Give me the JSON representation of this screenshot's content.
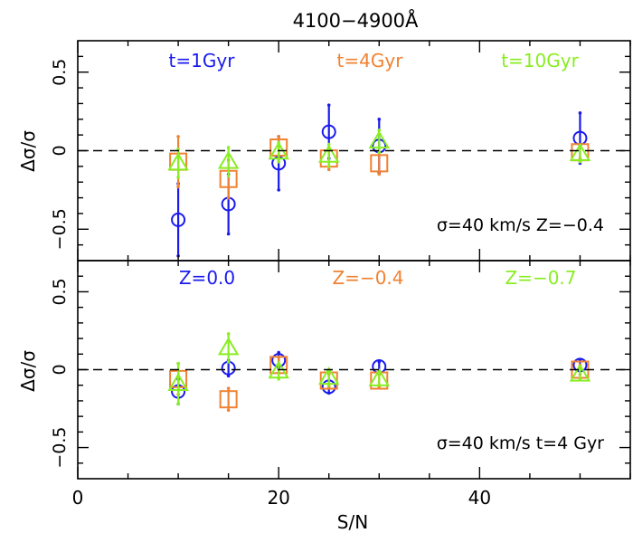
{
  "title": "4100−4900Å",
  "colors": {
    "blue": "#1a1aee",
    "orange": "#f08232",
    "green": "#88ee22",
    "axis": "#000000"
  },
  "chart_data": [
    {
      "type": "scatter",
      "panel": "top",
      "title": "4100−4900Å",
      "xlabel": "",
      "ylabel": "Δσ/σ",
      "xlim": [
        0,
        55
      ],
      "ylim": [
        -0.7,
        0.7
      ],
      "yticks": [
        -0.5,
        0,
        0.5
      ],
      "ytick_labels": [
        "−0.5",
        "0",
        "0.5"
      ],
      "reference_line": 0,
      "annotation": "σ=40 km/s Z=−0.4",
      "series": [
        {
          "name": "t=1Gyr",
          "color": "#1a1aee",
          "marker": "circle",
          "x": [
            10,
            15,
            20,
            25,
            30,
            50
          ],
          "y": [
            -0.44,
            -0.34,
            -0.08,
            0.12,
            0.03,
            0.08
          ],
          "err": [
            0.23,
            0.19,
            0.17,
            0.17,
            0.17,
            0.16
          ]
        },
        {
          "name": "t=4Gyr",
          "color": "#f08232",
          "marker": "square",
          "x": [
            10,
            15,
            20,
            25,
            30,
            50
          ],
          "y": [
            -0.07,
            -0.18,
            0.02,
            -0.05,
            -0.08,
            -0.01
          ],
          "err": [
            0.16,
            0.12,
            0.07,
            0.07,
            0.07,
            0.04
          ]
        },
        {
          "name": "t=10Gyr",
          "color": "#88ee22",
          "marker": "triangle",
          "x": [
            10,
            15,
            20,
            25,
            30,
            50
          ],
          "y": [
            -0.08,
            -0.07,
            -0.01,
            -0.03,
            0.06,
            -0.02
          ],
          "err": [
            0.09,
            0.09,
            0.06,
            0.07,
            0.07,
            0.05
          ]
        }
      ]
    },
    {
      "type": "scatter",
      "panel": "bottom",
      "xlabel": "S/N",
      "ylabel": "Δσ/σ",
      "xlim": [
        0,
        55
      ],
      "ylim": [
        -0.7,
        0.7
      ],
      "xticks": [
        0,
        20,
        40
      ],
      "xtick_labels": [
        "0",
        "20",
        "40"
      ],
      "yticks": [
        -0.5,
        0,
        0.5
      ],
      "ytick_labels": [
        "−0.5",
        "0",
        "0.5"
      ],
      "reference_line": 0,
      "annotation": "σ=40 km/s t=4 Gyr",
      "series": [
        {
          "name": "Z=0.0",
          "color": "#1a1aee",
          "marker": "circle",
          "x": [
            10,
            15,
            20,
            25,
            30,
            50
          ],
          "y": [
            -0.14,
            0.01,
            0.06,
            -0.11,
            0.02,
            0.03
          ],
          "err": [
            0.08,
            0.05,
            0.05,
            0.04,
            0.03,
            0.03
          ]
        },
        {
          "name": "Z=−0.4",
          "color": "#f08232",
          "marker": "square",
          "x": [
            10,
            15,
            20,
            25,
            30,
            50
          ],
          "y": [
            -0.06,
            -0.19,
            0.03,
            -0.07,
            -0.07,
            0.0
          ],
          "err": [
            0.1,
            0.07,
            0.05,
            0.04,
            0.04,
            0.03
          ]
        },
        {
          "name": "Z=−0.7",
          "color": "#88ee22",
          "marker": "triangle",
          "x": [
            10,
            15,
            20,
            25,
            30,
            50
          ],
          "y": [
            -0.09,
            0.14,
            -0.01,
            -0.05,
            -0.06,
            -0.03
          ],
          "err": [
            0.13,
            0.09,
            0.05,
            0.05,
            0.04,
            0.03
          ]
        }
      ]
    }
  ]
}
